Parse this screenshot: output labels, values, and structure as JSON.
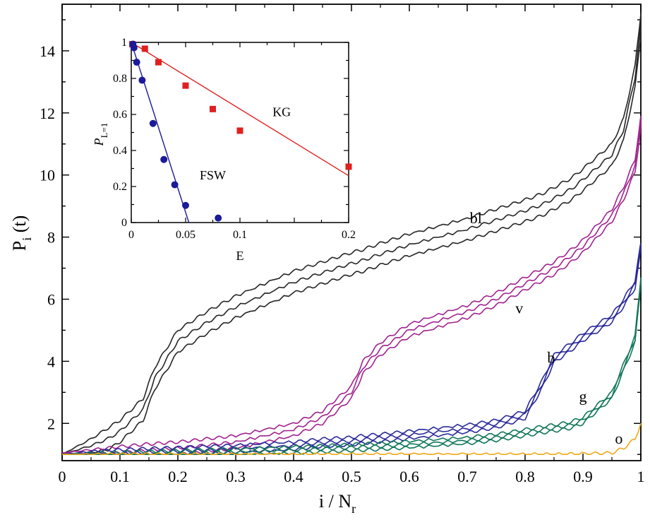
{
  "colors": {
    "bl": "#262626",
    "v": "#a0228f",
    "b": "#2a2a9a",
    "g": "#11775a",
    "o": "#f0a818",
    "kg": "#e02020",
    "fsw": "#1a1a9a"
  },
  "chart_data": [
    {
      "type": "line",
      "xlabel": {
        "main": "i / N",
        "sub": "r"
      },
      "ylabel": {
        "main": "P",
        "sub": "i",
        "suffix": " (t)"
      },
      "xlim": [
        0,
        1
      ],
      "ylim": [
        0.8,
        15.5
      ],
      "xticks": [
        "0",
        "0.1",
        "0.2",
        "0.3",
        "0.4",
        "0.5",
        "0.6",
        "0.7",
        "0.8",
        "0.9",
        "1"
      ],
      "xtick_values": [
        0,
        0.1,
        0.2,
        0.3,
        0.4,
        0.5,
        0.6,
        0.7,
        0.8,
        0.9,
        1
      ],
      "yticks": [
        "2",
        "4",
        "6",
        "8",
        "10",
        "12",
        "14"
      ],
      "ytick_values": [
        2,
        4,
        6,
        8,
        10,
        12,
        14
      ],
      "x": [
        0,
        0.05,
        0.1,
        0.14,
        0.16,
        0.2,
        0.25,
        0.3,
        0.4,
        0.45,
        0.5,
        0.52,
        0.55,
        0.6,
        0.7,
        0.75,
        0.8,
        0.83,
        0.85,
        0.88,
        0.9,
        0.95,
        0.97,
        0.99,
        1.0
      ],
      "series": [
        {
          "name": "bl",
          "label_text": "bl",
          "color_key": "bl",
          "label_at": [
            0.715,
            8.45
          ],
          "values": [
            1.0,
            1.5,
            2.1,
            2.8,
            3.8,
            5.0,
            5.6,
            6.1,
            6.9,
            7.2,
            7.5,
            7.6,
            7.8,
            8.1,
            8.6,
            8.9,
            9.2,
            9.4,
            9.6,
            9.9,
            10.2,
            11.0,
            11.8,
            13.5,
            15.2
          ],
          "offsets": [
            0,
            -0.35,
            -0.7
          ]
        },
        {
          "name": "v",
          "label_text": "v",
          "color_key": "v",
          "label_at": [
            0.79,
            5.55
          ],
          "values": [
            1.05,
            1.15,
            1.25,
            1.32,
            1.35,
            1.4,
            1.5,
            1.6,
            2.0,
            2.4,
            3.2,
            4.0,
            4.6,
            5.2,
            5.8,
            6.2,
            6.7,
            7.0,
            7.2,
            7.6,
            7.9,
            8.9,
            9.6,
            10.5,
            11.9
          ],
          "offsets": [
            0,
            -0.2,
            -0.4
          ]
        },
        {
          "name": "b",
          "label_text": "b",
          "color_key": "b",
          "label_at": [
            0.845,
            3.95
          ],
          "values": [
            1.0,
            1.1,
            1.15,
            1.18,
            1.2,
            1.22,
            1.26,
            1.3,
            1.4,
            1.5,
            1.55,
            1.6,
            1.65,
            1.75,
            1.95,
            2.1,
            2.4,
            3.4,
            4.2,
            4.6,
            4.9,
            5.5,
            6.0,
            6.6,
            7.8
          ],
          "offsets": [
            0,
            -0.12,
            -0.24
          ]
        },
        {
          "name": "g",
          "label_text": "g",
          "color_key": "g",
          "label_at": [
            0.9,
            2.7
          ],
          "values": [
            1.0,
            1.04,
            1.07,
            1.09,
            1.1,
            1.12,
            1.15,
            1.18,
            1.24,
            1.28,
            1.32,
            1.34,
            1.36,
            1.42,
            1.55,
            1.65,
            1.8,
            1.9,
            1.95,
            2.05,
            2.2,
            3.0,
            3.9,
            4.8,
            6.7
          ],
          "offsets": [
            0,
            -0.1,
            -0.2
          ]
        },
        {
          "name": "o",
          "label_text": "o",
          "color_key": "o",
          "label_at": [
            0.962,
            1.35
          ],
          "values": [
            1.0,
            1.0,
            1.0,
            1.0,
            1.0,
            1.0,
            1.0,
            1.0,
            1.0,
            1.0,
            1.0,
            1.0,
            1.0,
            1.0,
            1.0,
            1.0,
            1.0,
            1.0,
            1.0,
            1.01,
            1.02,
            1.05,
            1.2,
            1.5,
            2.0
          ],
          "offsets": [
            0
          ]
        }
      ]
    },
    {
      "type": "scatter",
      "xlabel": "E",
      "ylabel": {
        "main": "P",
        "sub": "L=1"
      },
      "xlim": [
        0,
        0.2
      ],
      "ylim": [
        0,
        1
      ],
      "xticks": [
        "0",
        "0.05",
        "0.1",
        "0.2"
      ],
      "xtick_values": [
        0,
        0.05,
        0.1,
        0.2
      ],
      "yticks": [
        "0",
        "0.2",
        "0.4",
        "0.6",
        "0.8",
        "1"
      ],
      "ytick_values": [
        0,
        0.2,
        0.4,
        0.6,
        0.8,
        1
      ],
      "series": [
        {
          "name": "KG",
          "label_text": "KG",
          "color_key": "kg",
          "marker": "square",
          "label_at": [
            0.13,
            0.59
          ],
          "x": [
            0.001,
            0.0125,
            0.025,
            0.05,
            0.075,
            0.1,
            0.2
          ],
          "y": [
            0.99,
            0.965,
            0.89,
            0.76,
            0.63,
            0.51,
            0.31
          ],
          "fit": {
            "x": [
              0,
              0.2
            ],
            "y": [
              1.0,
              0.26
            ]
          }
        },
        {
          "name": "FSW",
          "label_text": "FSW",
          "color_key": "fsw",
          "marker": "circle",
          "label_at": [
            0.063,
            0.24
          ],
          "x": [
            0.0015,
            0.0025,
            0.005,
            0.01,
            0.02,
            0.03,
            0.04,
            0.05,
            0.08
          ],
          "y": [
            0.99,
            0.97,
            0.89,
            0.79,
            0.55,
            0.35,
            0.21,
            0.095,
            0.025
          ],
          "fit": {
            "x": [
              0,
              0.053
            ],
            "y": [
              1.0,
              0.0
            ]
          }
        }
      ]
    }
  ]
}
